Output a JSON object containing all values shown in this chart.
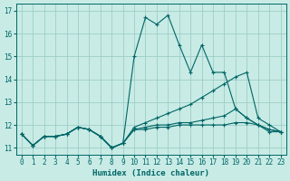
{
  "xlabel": "Humidex (Indice chaleur)",
  "xlim": [
    -0.5,
    23.5
  ],
  "ylim": [
    10.7,
    17.3
  ],
  "xticks": [
    0,
    1,
    2,
    3,
    4,
    5,
    6,
    7,
    8,
    9,
    10,
    11,
    12,
    13,
    14,
    15,
    16,
    17,
    18,
    19,
    20,
    21,
    22,
    23
  ],
  "yticks": [
    11,
    12,
    13,
    14,
    15,
    16,
    17
  ],
  "background_color": "#c8ebe5",
  "grid_color": "#9ecec7",
  "line_color": "#006666",
  "lines": [
    {
      "x": [
        0,
        1,
        2,
        3,
        4,
        5,
        6,
        7,
        8,
        9,
        10,
        11,
        12,
        13,
        14,
        15,
        16,
        17,
        18,
        19,
        20,
        21,
        22,
        23
      ],
      "y": [
        11.6,
        11.1,
        11.5,
        11.5,
        11.6,
        11.9,
        11.8,
        11.5,
        11.0,
        11.2,
        15.0,
        16.7,
        16.4,
        16.8,
        15.5,
        14.3,
        15.5,
        14.3,
        14.3,
        12.7,
        12.3,
        12.0,
        11.7,
        11.7
      ]
    },
    {
      "x": [
        0,
        1,
        2,
        3,
        4,
        5,
        6,
        7,
        8,
        9,
        10,
        11,
        12,
        13,
        14,
        15,
        16,
        17,
        18,
        19,
        20,
        21,
        22,
        23
      ],
      "y": [
        11.6,
        11.1,
        11.5,
        11.5,
        11.6,
        11.9,
        11.8,
        11.5,
        11.0,
        11.2,
        11.9,
        12.1,
        12.3,
        12.5,
        12.7,
        12.9,
        13.2,
        13.5,
        13.8,
        14.1,
        14.3,
        12.3,
        12.0,
        11.7
      ]
    },
    {
      "x": [
        0,
        1,
        2,
        3,
        4,
        5,
        6,
        7,
        8,
        9,
        10,
        11,
        12,
        13,
        14,
        15,
        16,
        17,
        18,
        19,
        20,
        21,
        22,
        23
      ],
      "y": [
        11.6,
        11.1,
        11.5,
        11.5,
        11.6,
        11.9,
        11.8,
        11.5,
        11.0,
        11.2,
        11.8,
        11.9,
        12.0,
        12.0,
        12.1,
        12.1,
        12.2,
        12.3,
        12.4,
        12.7,
        12.3,
        12.0,
        11.8,
        11.7
      ]
    },
    {
      "x": [
        0,
        1,
        2,
        3,
        4,
        5,
        6,
        7,
        8,
        9,
        10,
        11,
        12,
        13,
        14,
        15,
        16,
        17,
        18,
        19,
        20,
        21,
        22,
        23
      ],
      "y": [
        11.6,
        11.1,
        11.5,
        11.5,
        11.6,
        11.9,
        11.8,
        11.5,
        11.0,
        11.2,
        11.8,
        11.8,
        11.9,
        11.9,
        12.0,
        12.0,
        12.0,
        12.0,
        12.0,
        12.1,
        12.1,
        12.0,
        11.8,
        11.7
      ]
    }
  ]
}
